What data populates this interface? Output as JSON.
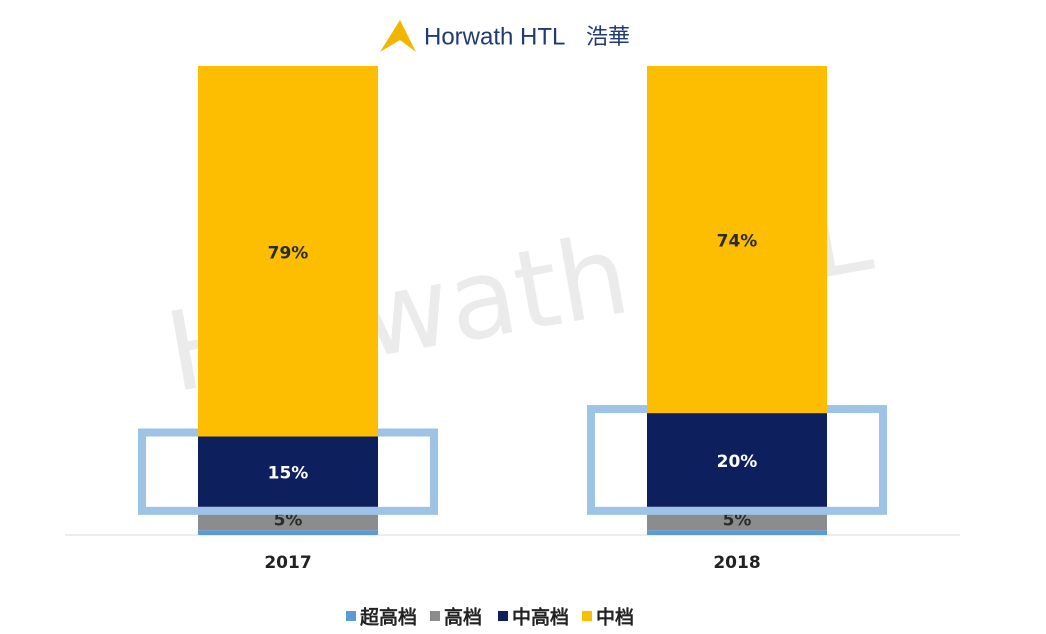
{
  "header": {
    "brand": "Horwath HTL",
    "brand_cn": "浩華"
  },
  "watermark": "Horwath HTL",
  "chart_data": {
    "type": "stacked_bar",
    "categories": [
      "2017",
      "2018"
    ],
    "series": [
      {
        "name": "超高档",
        "color": "#5b9bd5",
        "values": [
          1,
          1
        ]
      },
      {
        "name": "高档",
        "color": "#8c8c8c",
        "values": [
          5,
          5
        ],
        "value_labels": [
          "5%",
          "5%"
        ]
      },
      {
        "name": "中高档",
        "color": "#0d1f5c",
        "values": [
          15,
          20
        ],
        "value_labels": [
          "15%",
          "20%"
        ]
      },
      {
        "name": "中档",
        "color": "#fdbd00",
        "values": [
          79,
          74
        ],
        "value_labels": [
          "79%",
          "74%"
        ]
      }
    ],
    "legend": "bottom"
  }
}
